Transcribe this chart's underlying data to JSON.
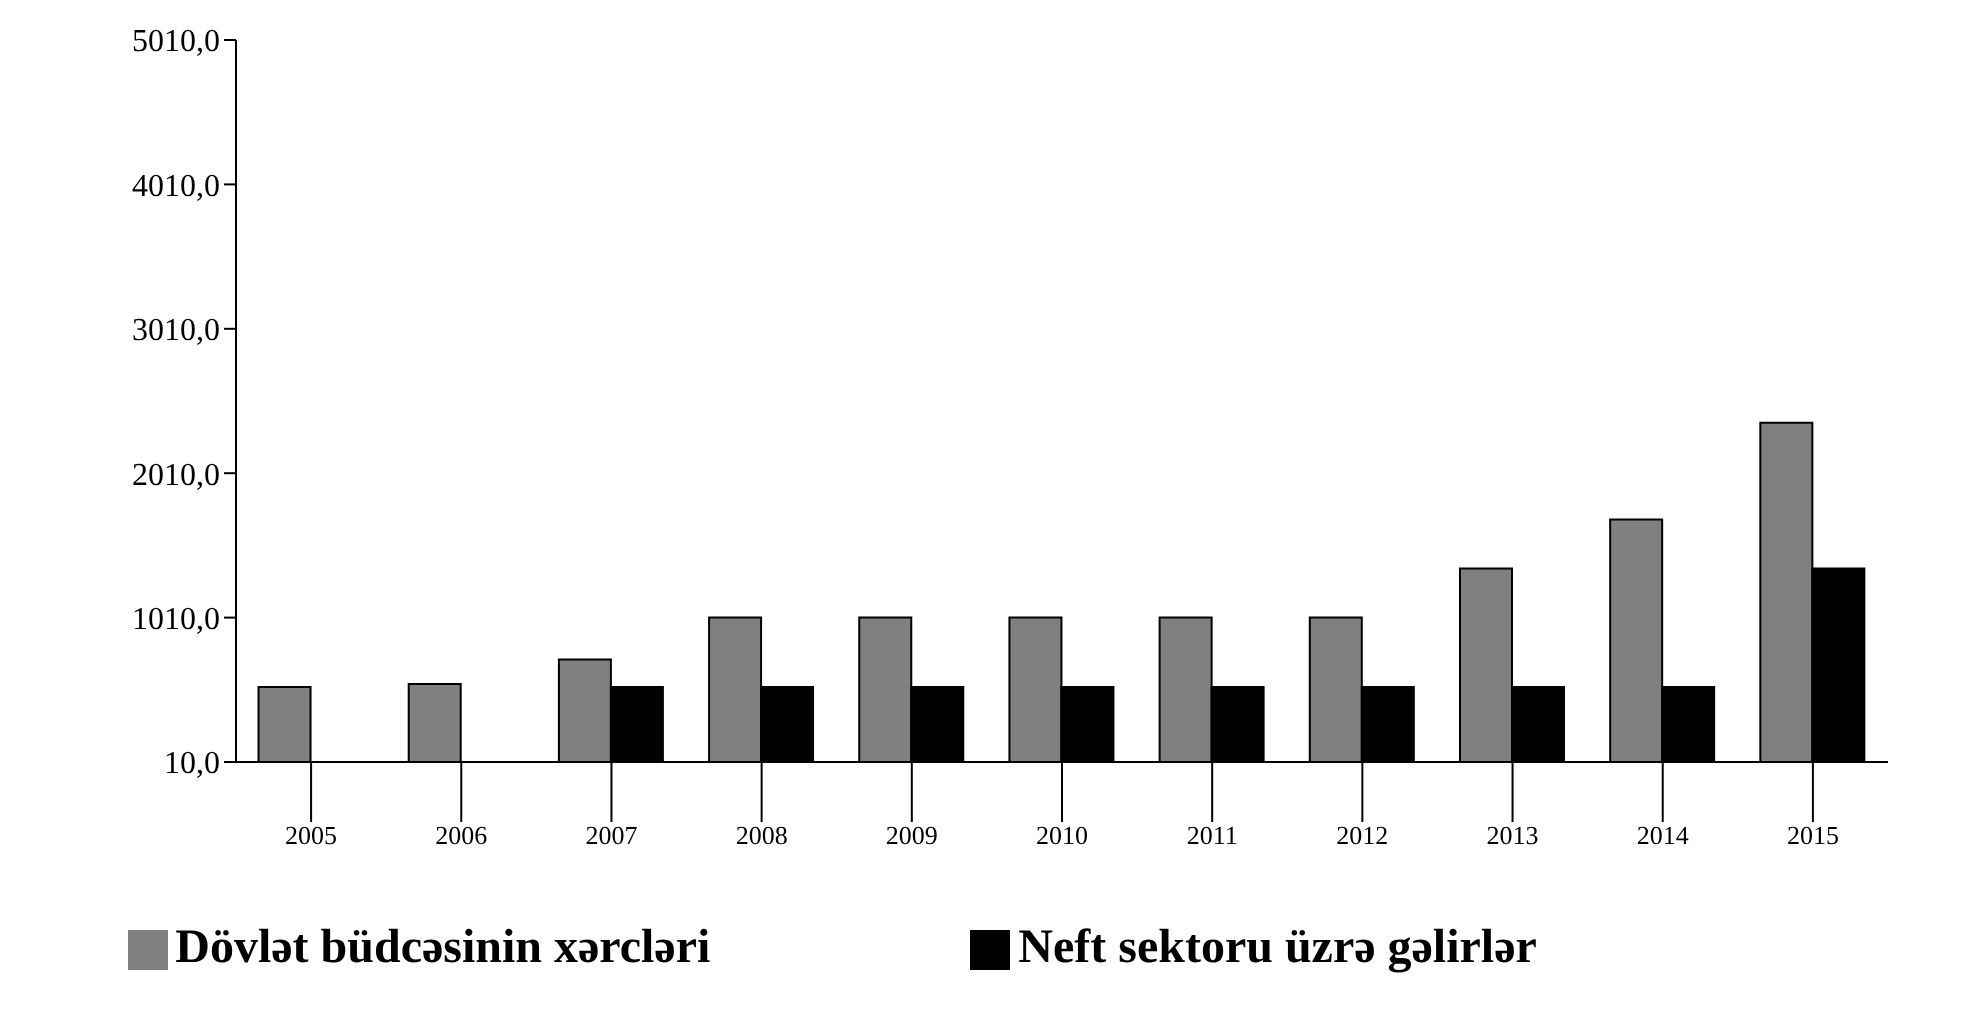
{
  "chart_data": {
    "type": "bar",
    "categories": [
      "2005",
      "2006",
      "2007",
      "2008",
      "2009",
      "2010",
      "2011",
      "2012",
      "2013",
      "2014",
      "2015"
    ],
    "series": [
      {
        "name": "Dövlət büdcəsinin xərcləri",
        "color": "#808080",
        "values": [
          530,
          550,
          720,
          1010,
          1010,
          1010,
          1010,
          1010,
          1350,
          1690,
          2360
        ]
      },
      {
        "name": "Neft sektoru üzrə gəlirlər",
        "color": "#000000",
        "values": [
          null,
          null,
          530,
          530,
          530,
          530,
          530,
          530,
          530,
          530,
          1350
        ]
      }
    ],
    "ylim": [
      10,
      5010
    ],
    "yticks": [
      {
        "value": 10,
        "label": "10,0"
      },
      {
        "value": 1010,
        "label": "1010,0"
      },
      {
        "value": 2010,
        "label": "2010,0"
      },
      {
        "value": 3010,
        "label": "3010,0"
      },
      {
        "value": 4010,
        "label": "4010,0"
      },
      {
        "value": 5010,
        "label": "5010,0"
      }
    ],
    "grid": false,
    "legend": "bottom"
  }
}
